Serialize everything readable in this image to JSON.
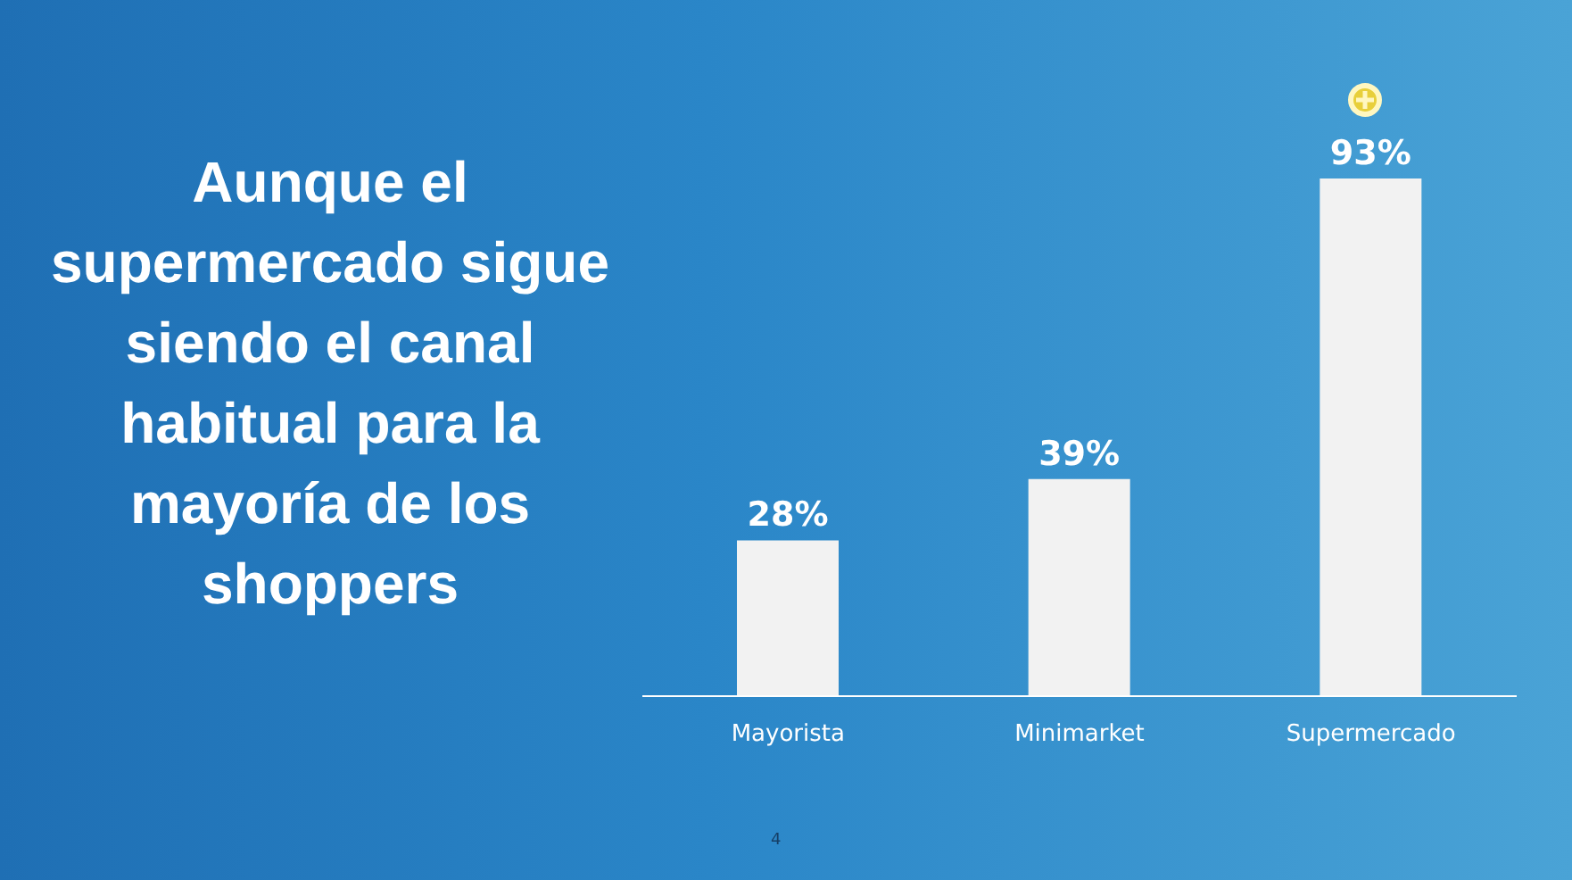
{
  "chart_data": {
    "type": "bar",
    "title": "Aunque el supermercado sigue siendo el canal habitual para la mayoría de los shoppers",
    "categories": [
      "Mayorista",
      "Minimarket",
      "Supermercado"
    ],
    "values": [
      28,
      39,
      93
    ],
    "color": "#f2f2f2",
    "value_labels": [
      "28%",
      "39%",
      "93%"
    ],
    "annotations": [
      "4"
    ]
  }
}
